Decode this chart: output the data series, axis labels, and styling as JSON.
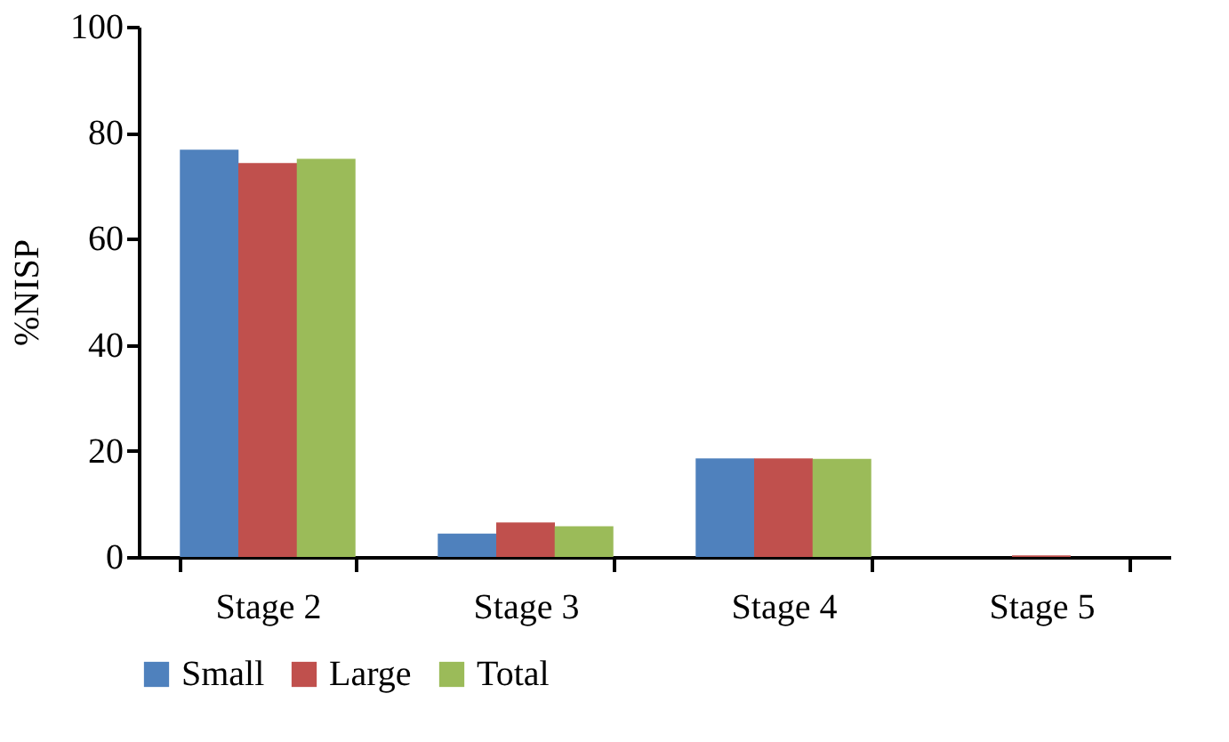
{
  "chart_data": {
    "type": "bar",
    "ylabel": "%NISP",
    "categories": [
      "Stage 2",
      "Stage 3",
      "Stage 4",
      "Stage 5"
    ],
    "series": [
      {
        "name": "Small",
        "color": "#4f81bd",
        "values": [
          76.8,
          4.4,
          18.6,
          0
        ]
      },
      {
        "name": "Large",
        "color": "#c0504d",
        "values": [
          74.3,
          6.5,
          18.6,
          0.3
        ]
      },
      {
        "name": "Total",
        "color": "#9bbb59",
        "values": [
          75.1,
          5.8,
          18.5,
          0
        ]
      }
    ],
    "ylim": [
      0,
      100
    ],
    "yticks": [
      0,
      20,
      40,
      60,
      80,
      100
    ],
    "grid": false,
    "legend": "bottom"
  }
}
